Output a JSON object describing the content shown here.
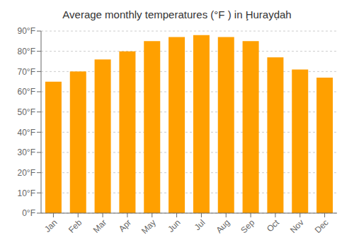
{
  "chart_data": {
    "type": "bar",
    "title": "Average monthly temperatures (°F ) in Ḩurayḍah",
    "categories": [
      "Jan",
      "Feb",
      "Mar",
      "Apr",
      "May",
      "Jun",
      "Jul",
      "Aug",
      "Sep",
      "Oct",
      "Nov",
      "Dec"
    ],
    "values": [
      65,
      70,
      76,
      80,
      85,
      87,
      88,
      87,
      85,
      77,
      71,
      67
    ],
    "color": "#ffa000",
    "ylim": [
      0,
      90
    ],
    "yticks": [
      {
        "value": 0,
        "label": "0°F"
      },
      {
        "value": 10,
        "label": "10°F"
      },
      {
        "value": 20,
        "label": "20°F"
      },
      {
        "value": 30,
        "label": "30°F"
      },
      {
        "value": 40,
        "label": "40°F"
      },
      {
        "value": 50,
        "label": "50°F"
      },
      {
        "value": 60,
        "label": "60°F"
      },
      {
        "value": 70,
        "label": "70°F"
      },
      {
        "value": 80,
        "label": "80°F"
      },
      {
        "value": 90,
        "label": "90°F"
      }
    ],
    "grid": true
  }
}
